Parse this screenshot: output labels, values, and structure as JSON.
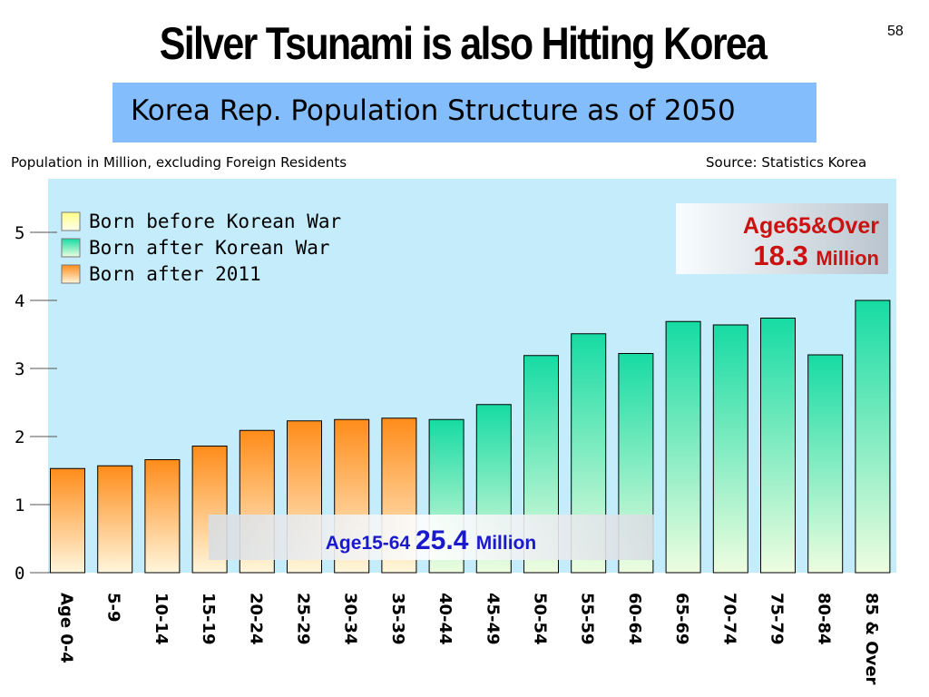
{
  "slide": {
    "title": "Silver Tsunami is also Hitting Korea",
    "page_number": "58"
  },
  "chart_data": {
    "type": "bar",
    "title": "Korea Rep. Population Structure as of 2050",
    "subtitle": "Population in Million, excluding Foreign Residents",
    "source": "Source: Statistics Korea",
    "xlabel": "",
    "ylabel": "",
    "ylim": [
      0,
      5.5
    ],
    "yticks": [
      0,
      1,
      2,
      3,
      4,
      5
    ],
    "grid": false,
    "legend_position": "top-left",
    "categories": [
      "Age 0-4",
      "5-9",
      "10-14",
      "15-19",
      "20-24",
      "25-29",
      "30-34",
      "35-39",
      "40-44",
      "45-49",
      "50-54",
      "55-59",
      "60-64",
      "65-69",
      "70-74",
      "75-79",
      "80-84",
      "85 & Over"
    ],
    "values": [
      1.53,
      1.57,
      1.66,
      1.86,
      2.09,
      2.23,
      2.25,
      2.27,
      2.25,
      2.47,
      3.19,
      3.51,
      3.22,
      3.69,
      3.64,
      3.74,
      3.2,
      4.0
    ],
    "groups": [
      "after2011",
      "after2011",
      "after2011",
      "after2011",
      "after2011",
      "after2011",
      "after2011",
      "after2011",
      "afterWar",
      "afterWar",
      "afterWar",
      "afterWar",
      "afterWar",
      "afterWar",
      "afterWar",
      "afterWar",
      "afterWar",
      "afterWar"
    ],
    "legend": [
      {
        "name": "Born before Korean War",
        "key": "beforeWar",
        "color": "#ffff99"
      },
      {
        "name": "Born after Korean War",
        "key": "afterWar",
        "color": "#33dd9e"
      },
      {
        "name": "Born after 2011",
        "key": "after2011",
        "color": "#ff9933"
      }
    ],
    "annotations": {
      "age65": {
        "label": "Age65&Over",
        "value": "18.3",
        "unit": "Million"
      },
      "age15": {
        "label": "Age15-64",
        "value": "25.4",
        "unit": "Million"
      }
    },
    "colors": {
      "plot_background": "#c4ecfa",
      "annotation_text": "#cc1111",
      "annotation_blue": "#1a1acc",
      "orange": "#ff8c1a",
      "green": "#1edca0"
    }
  }
}
